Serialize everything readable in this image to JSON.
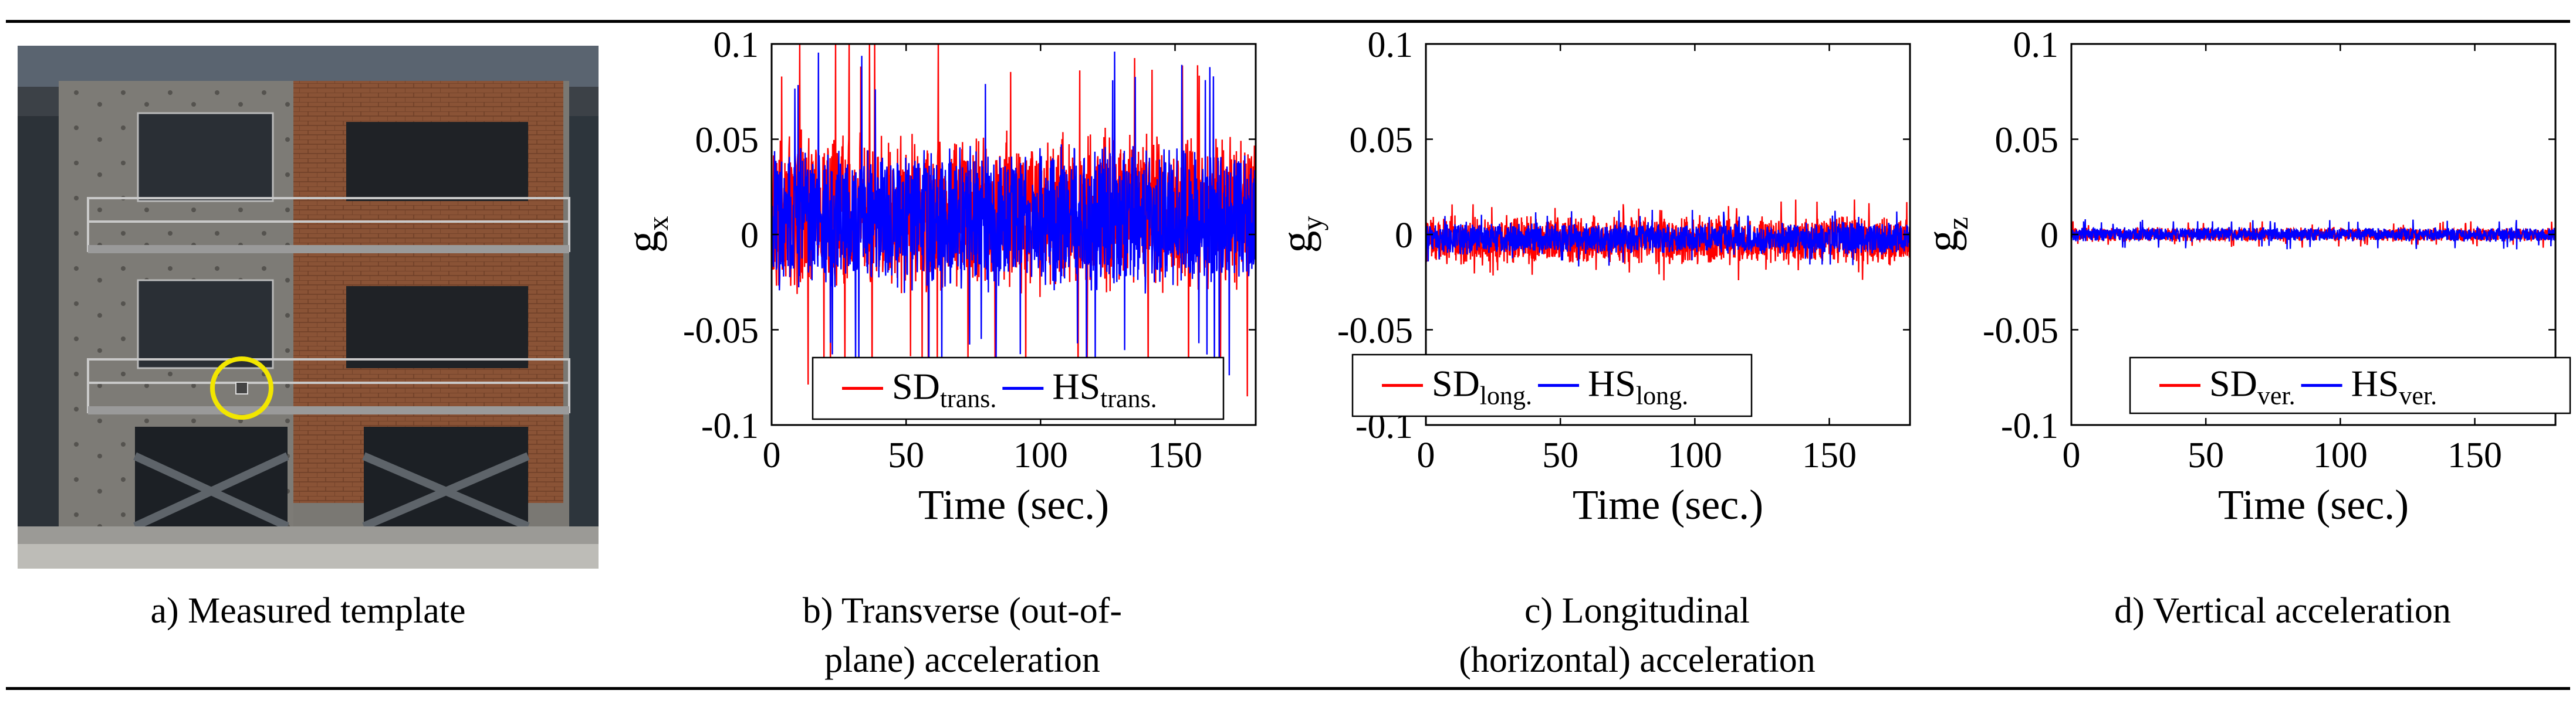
{
  "figure": {
    "captions": [
      {
        "lines": [
          "a) Measured template"
        ]
      },
      {
        "lines": [
          "b) Transverse (out-of-",
          "plane) acceleration"
        ]
      },
      {
        "lines": [
          "c) Longitudinal",
          "(horizontal) acceleration"
        ]
      },
      {
        "lines": [
          "d) Vertical acceleration"
        ]
      }
    ]
  },
  "photo": {
    "subject": "three-storey brick and concrete building specimen on shake table",
    "marker_color": "#f2e600"
  },
  "chart_data": [
    {
      "type": "line",
      "x_range": [
        0,
        180
      ],
      "ylim": [
        -0.1,
        0.1
      ],
      "xticks": [
        "0",
        "50",
        "100",
        "150"
      ],
      "yticks": [
        "0.1",
        "0.05",
        "0",
        "-0.05",
        "-0.1"
      ],
      "xlabel": "Time (sec.)",
      "ylabel": "g",
      "ylabel_sub": "x",
      "legend_placement": "bottom-center",
      "series": [
        {
          "name": "SD",
          "sub": "trans.",
          "color": "#ff0000",
          "mean": 0.012,
          "half_range": 0.045,
          "peak": 0.1
        },
        {
          "name": "HS",
          "sub": "trans.",
          "color": "#0000ff",
          "mean": 0.008,
          "half_range": 0.04,
          "peak": 0.088
        }
      ]
    },
    {
      "type": "line",
      "x_range": [
        0,
        180
      ],
      "ylim": [
        -0.1,
        0.1
      ],
      "xticks": [
        "0",
        "50",
        "100",
        "150"
      ],
      "yticks": [
        "0.1",
        "0.05",
        "0",
        "-0.05",
        "-0.1"
      ],
      "xlabel": "Time (sec.)",
      "ylabel": "g",
      "ylabel_sub": "y",
      "legend_placement": "bottom-center",
      "series": [
        {
          "name": "SD",
          "sub": "long.",
          "color": "#ff0000",
          "mean": -0.003,
          "half_range": 0.014,
          "peak": 0.022
        },
        {
          "name": "HS",
          "sub": "long.",
          "color": "#0000ff",
          "mean": -0.002,
          "half_range": 0.009,
          "peak": 0.015
        }
      ]
    },
    {
      "type": "line",
      "x_range": [
        0,
        180
      ],
      "ylim": [
        -0.1,
        0.1
      ],
      "xticks": [
        "0",
        "50",
        "100",
        "150"
      ],
      "yticks": [
        "0.1",
        "0.05",
        "0",
        "-0.05",
        "-0.1"
      ],
      "xlabel": "Time (sec.)",
      "ylabel": "g",
      "ylabel_sub": "z",
      "legend_placement": "bottom-center",
      "series": [
        {
          "name": "SD",
          "sub": "ver.",
          "color": "#ff0000",
          "mean": 0.0,
          "half_range": 0.004,
          "peak": 0.007
        },
        {
          "name": "HS",
          "sub": "ver.",
          "color": "#0000ff",
          "mean": 0.0,
          "half_range": 0.004,
          "peak": 0.008
        }
      ]
    }
  ]
}
